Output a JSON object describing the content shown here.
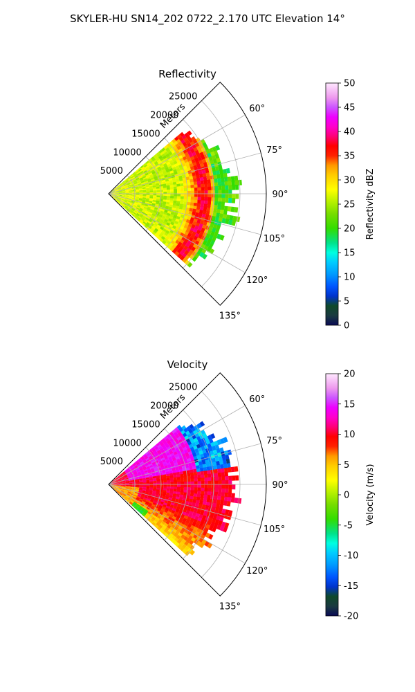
{
  "figure": {
    "suptitle": "SKYLER-HU  SN14_202  0722_2.170 UTC Elevation 14°"
  },
  "chart_data": [
    {
      "type": "polar-ppi",
      "title": "Reflectivity",
      "range_axis_label": "Meters",
      "range_ticks": [
        5000,
        10000,
        15000,
        20000,
        25000
      ],
      "range_tick_labels": [
        "5000",
        "10000",
        "15000",
        "20000",
        "25000"
      ],
      "range_max": 30000,
      "azimuth_ticks": [
        60,
        75,
        90,
        105,
        120,
        135
      ],
      "azimuth_tick_labels": [
        "60°",
        "75°",
        "90°",
        "105°",
        "120°",
        "135°"
      ],
      "azimuth_limits": [
        45,
        135
      ],
      "grid": true,
      "colorbar": {
        "label": "Reflectivity dBZ",
        "min": 0,
        "max": 50,
        "ticks": [
          0,
          5,
          10,
          15,
          20,
          25,
          30,
          35,
          40,
          45,
          50
        ],
        "colormap": "pyart_HomeyerRainbow",
        "stops": [
          [
            0,
            "#0a0a55"
          ],
          [
            0.04,
            "#1a3a40"
          ],
          [
            0.08,
            "#0f4a2a"
          ],
          [
            0.12,
            "#0033cc"
          ],
          [
            0.16,
            "#0055ff"
          ],
          [
            0.21,
            "#0099ff"
          ],
          [
            0.26,
            "#00ccff"
          ],
          [
            0.3,
            "#00ffe0"
          ],
          [
            0.34,
            "#00e28a"
          ],
          [
            0.4,
            "#33dd00"
          ],
          [
            0.46,
            "#77dd00"
          ],
          [
            0.5,
            "#aaee00"
          ],
          [
            0.56,
            "#ffff00"
          ],
          [
            0.62,
            "#ffcc00"
          ],
          [
            0.66,
            "#ff9900"
          ],
          [
            0.7,
            "#ff2200"
          ],
          [
            0.74,
            "#ff0000"
          ],
          [
            0.78,
            "#ff0077"
          ],
          [
            0.82,
            "#ff00cc"
          ],
          [
            0.86,
            "#ee00ff"
          ],
          [
            0.9,
            "#cc55ff"
          ],
          [
            0.94,
            "#ee99ee"
          ],
          [
            1.0,
            "#ffe8ff"
          ]
        ]
      },
      "echo_coverage": {
        "azimuth_start": 50,
        "azimuth_end": 132,
        "range_max_center": 24000
      },
      "field_description_values": {
        "near_range_dBZ": 27,
        "mid_range_dBZ": 24,
        "peak_ring_range_m": 18000,
        "peak_ring_dBZ": 36,
        "outer_edge_dBZ": 19
      }
    },
    {
      "type": "polar-ppi",
      "title": "Velocity",
      "range_axis_label": "Meters",
      "range_ticks": [
        5000,
        10000,
        15000,
        20000,
        25000
      ],
      "range_tick_labels": [
        "5000",
        "10000",
        "15000",
        "20000",
        "25000"
      ],
      "range_max": 30000,
      "azimuth_ticks": [
        60,
        75,
        90,
        105,
        120,
        135
      ],
      "azimuth_tick_labels": [
        "60°",
        "75°",
        "90°",
        "105°",
        "120°",
        "135°"
      ],
      "azimuth_limits": [
        45,
        135
      ],
      "grid": true,
      "colorbar": {
        "label": "Velocity (m/s)",
        "min": -20,
        "max": 20,
        "ticks": [
          -20,
          -15,
          -10,
          -5,
          0,
          5,
          10,
          15,
          20
        ],
        "colormap": "pyart_BuDRd",
        "stops": [
          [
            0,
            "#0a0a55"
          ],
          [
            0.04,
            "#1a3a40"
          ],
          [
            0.08,
            "#0f4a2a"
          ],
          [
            0.12,
            "#0033cc"
          ],
          [
            0.16,
            "#0055ff"
          ],
          [
            0.21,
            "#0099ff"
          ],
          [
            0.26,
            "#00ccff"
          ],
          [
            0.3,
            "#00ffe0"
          ],
          [
            0.34,
            "#00e28a"
          ],
          [
            0.4,
            "#33dd00"
          ],
          [
            0.46,
            "#77dd00"
          ],
          [
            0.5,
            "#aaee00"
          ],
          [
            0.56,
            "#ffff00"
          ],
          [
            0.62,
            "#ffcc00"
          ],
          [
            0.66,
            "#ff9900"
          ],
          [
            0.7,
            "#ff2200"
          ],
          [
            0.74,
            "#ff0000"
          ],
          [
            0.78,
            "#ff0077"
          ],
          [
            0.82,
            "#ff00cc"
          ],
          [
            0.86,
            "#ee00ff"
          ],
          [
            0.9,
            "#cc55ff"
          ],
          [
            0.94,
            "#ee99ee"
          ],
          [
            1.0,
            "#ffe8ff"
          ]
        ]
      },
      "echo_coverage": {
        "azimuth_start": 50,
        "azimuth_end": 132,
        "range_max_center": 24000
      },
      "field_description_values": {
        "southwest_edge_ms": 0,
        "center_ms": 10,
        "north_region_ms": 14,
        "northeast_patch_ms": -12
      }
    }
  ]
}
